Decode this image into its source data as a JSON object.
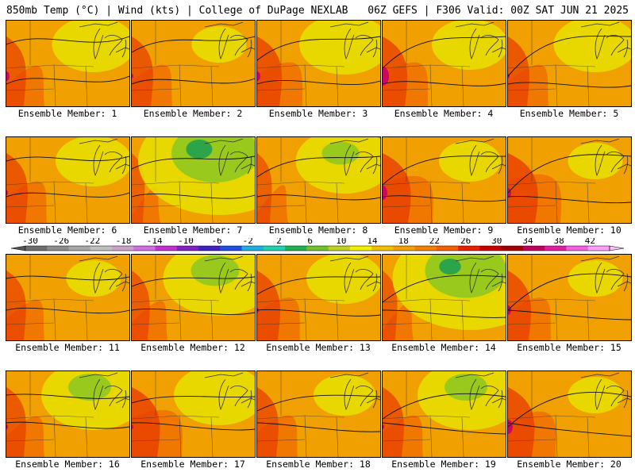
{
  "header": {
    "left": "850mb Temp (°C) | Wind (kts) | College of DuPage NEXLAB",
    "right": "06Z GEFS | F306 Valid: 00Z SAT JUN 21 2025"
  },
  "panels": [
    {
      "label": "Ensemble Member: 1",
      "warm": 0.3,
      "hot": 0.1,
      "cool": 0.25
    },
    {
      "label": "Ensemble Member: 2",
      "warm": 0.35,
      "hot": 0.05,
      "cool": 0.05
    },
    {
      "label": "Ensemble Member: 3",
      "warm": 0.45,
      "hot": 0.1,
      "cool": 0.3
    },
    {
      "label": "Ensemble Member: 4",
      "warm": 0.45,
      "hot": 0.2,
      "cool": 0.2
    },
    {
      "label": "Ensemble Member: 5",
      "warm": 0.35,
      "hot": 0.05,
      "cool": 0.25
    },
    {
      "label": "Ensemble Member: 6",
      "warm": 0.35,
      "hot": 0.05,
      "cool": 0.2
    },
    {
      "label": "Ensemble Member: 7",
      "warm": 0.1,
      "hot": 0.0,
      "cool": 0.8
    },
    {
      "label": "Ensemble Member: 8",
      "warm": 0.15,
      "hot": 0.0,
      "cool": 0.35
    },
    {
      "label": "Ensemble Member: 9",
      "warm": 0.55,
      "hot": 0.15,
      "cool": 0.1
    },
    {
      "label": "Ensemble Member: 10",
      "warm": 0.6,
      "hot": 0.1,
      "cool": 0.05
    },
    {
      "label": "Ensemble Member: 11",
      "warm": 0.3,
      "hot": 0.0,
      "cool": 0.05
    },
    {
      "label": "Ensemble Member: 12",
      "warm": 0.25,
      "hot": 0.0,
      "cool": 0.45
    },
    {
      "label": "Ensemble Member: 13",
      "warm": 0.4,
      "hot": 0.05,
      "cool": 0.2
    },
    {
      "label": "Ensemble Member: 14",
      "warm": 0.15,
      "hot": 0.0,
      "cool": 0.75
    },
    {
      "label": "Ensemble Member: 15",
      "warm": 0.4,
      "hot": 0.1,
      "cool": 0.05
    },
    {
      "label": "Ensemble Member: 16",
      "warm": 0.3,
      "hot": 0.05,
      "cool": 0.4
    },
    {
      "label": "Ensemble Member: 17",
      "warm": 0.55,
      "hot": 0.05,
      "cool": 0.3
    },
    {
      "label": "Ensemble Member: 18",
      "warm": 0.35,
      "hot": 0.0,
      "cool": 0.1
    },
    {
      "label": "Ensemble Member: 19",
      "warm": 0.35,
      "hot": 0.05,
      "cool": 0.4
    },
    {
      "label": "Ensemble Member: 20",
      "warm": 0.5,
      "hot": 0.15,
      "cool": 0.05
    }
  ],
  "colorbar": {
    "ticks": [
      "-30",
      "-26",
      "-22",
      "-18",
      "-14",
      "-10",
      "-6",
      "-2",
      "2",
      "6",
      "10",
      "14",
      "18",
      "22",
      "26",
      "30",
      "34",
      "38",
      "42"
    ],
    "colors": [
      "#6e6e6e",
      "#8c8c8c",
      "#a6a6a6",
      "#bfbfbf",
      "#c8a2c8",
      "#d070e0",
      "#c030d0",
      "#8020c0",
      "#4020c0",
      "#2050e0",
      "#20b0e0",
      "#20d0b0",
      "#20b050",
      "#70c030",
      "#c0d020",
      "#f0f000",
      "#f0c000",
      "#f0a000",
      "#f08000",
      "#f06000",
      "#e82000",
      "#c80000",
      "#a00000",
      "#c00060",
      "#e020a0",
      "#f060e0",
      "#f8a0f8"
    ]
  }
}
